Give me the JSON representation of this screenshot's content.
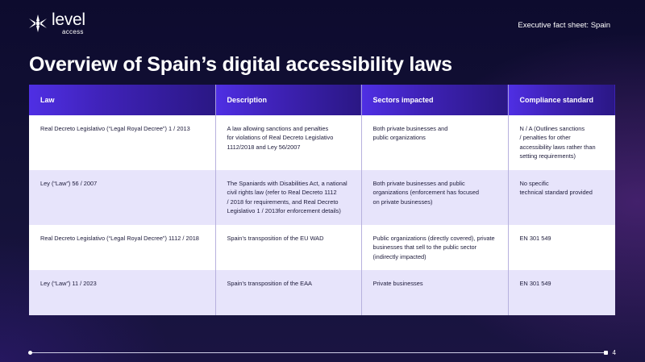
{
  "brand": {
    "name": "level",
    "sub": "access"
  },
  "header": {
    "factsheet": "Executive fact sheet: Spain"
  },
  "title": "Overview of Spain’s digital accessibility laws",
  "table": {
    "headers": [
      "Law",
      "Description",
      "Sectors impacted",
      "Compliance standard"
    ],
    "rows": [
      {
        "law": "Real Decreto Legislativo (“Legal Royal Decree”) 1 / 2013",
        "description": [
          "A law allowing sanctions and penalties",
          "for violations of Real Decreto Legislativo",
          "1112/2018 and Ley 56/2007"
        ],
        "sectors": [
          "Both private businesses and",
          "public organizations"
        ],
        "standard": [
          "N / A (Outlines sanctions",
          "/ penalties for other",
          "accessibility laws rather than",
          "setting requirements)"
        ]
      },
      {
        "law": "Ley (“Law”) 56 / 2007",
        "description": [
          "The Spaniards with Disabilities Act, a national",
          "civil rights law (refer to Real Decreto 1112",
          "/ 2018 for requirements, and Real Decreto",
          "Legislativo 1 / 2013for enforcement details)"
        ],
        "sectors": [
          "Both private businesses and public",
          "organizations (enforcement has focused",
          "on private businesses)"
        ],
        "standard": [
          "No specific",
          "technical standard provided"
        ]
      },
      {
        "law": "Real Decreto Legislativo (“Legal Royal Decree”) 1112 / 2018",
        "description": [
          "Spain’s transposition of the EU WAD"
        ],
        "sectors": [
          "Public organizations (directly covered), private",
          "businesses that sell to the public sector",
          "(indirectly impacted)"
        ],
        "standard": [
          "EN 301 549"
        ]
      },
      {
        "law": "Ley (“Law”) 11 / 2023",
        "description": [
          "Spain’s transposition of the EAA"
        ],
        "sectors": [
          "Private businesses"
        ],
        "standard": [
          "EN 301 549"
        ]
      }
    ]
  },
  "footer": {
    "page": "4"
  },
  "colors": {
    "header_start": "#4f2fe4",
    "header_end": "#2a1784",
    "row_alt": "#e7e4fb",
    "background": "#141238"
  }
}
